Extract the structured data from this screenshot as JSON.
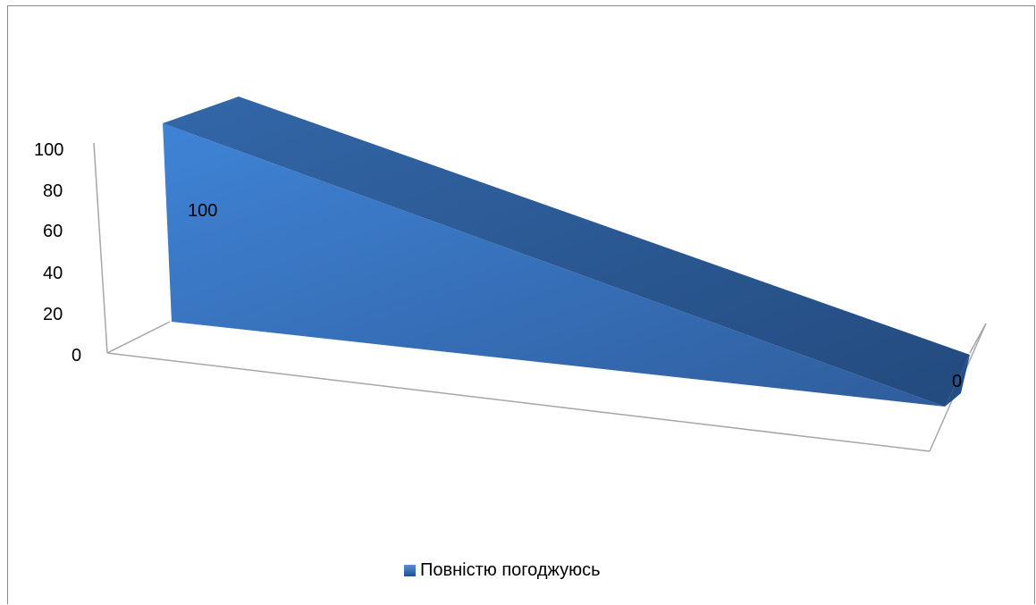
{
  "chart_data": {
    "type": "area",
    "style": "3d",
    "categories": [
      "",
      ""
    ],
    "series": [
      {
        "name": "Повністю погоджуюсь",
        "values": [
          100,
          0
        ]
      }
    ],
    "data_labels": [
      "100",
      "0"
    ],
    "ylim": [
      0,
      100
    ],
    "yticks": [
      "0",
      "20",
      "40",
      "60",
      "80",
      "100"
    ],
    "legend_position": "bottom",
    "grid": false,
    "colors": {
      "front": "#3a78c6",
      "top": "#2f5b93",
      "side": "#244e86"
    }
  }
}
